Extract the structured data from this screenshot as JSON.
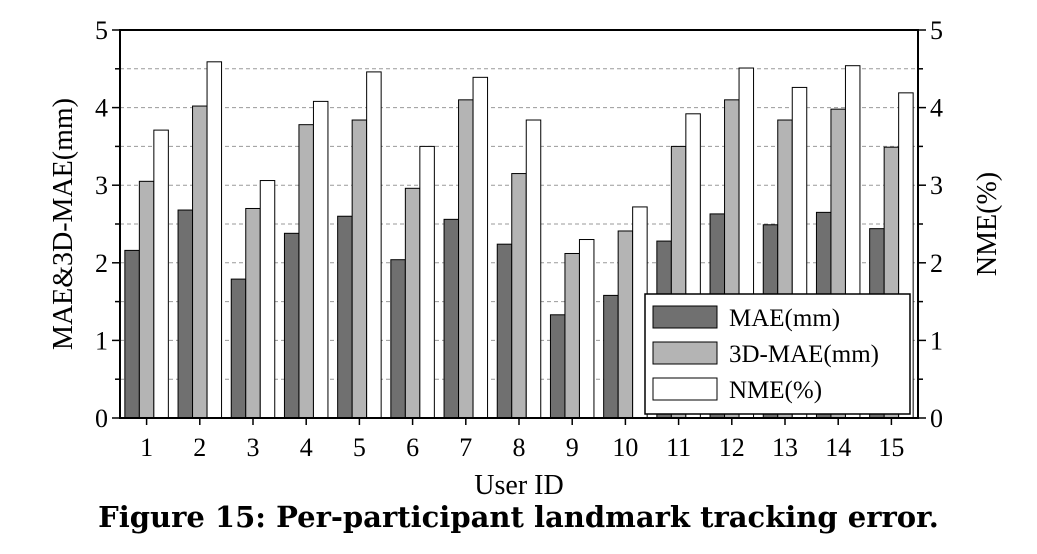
{
  "caption": "Figure 15: Per-participant landmark tracking error.",
  "chart_data": {
    "type": "bar",
    "xlabel": "User ID",
    "ylabel": "MAE&3D-MAE(mm)",
    "y2label": "NME(%)",
    "ylim": [
      0,
      5
    ],
    "y2lim": [
      0,
      5
    ],
    "yticks": [
      0,
      1,
      2,
      3,
      4,
      5
    ],
    "grid": "horizontal dashed",
    "legend_position": "bottom-right",
    "categories": [
      "1",
      "2",
      "3",
      "4",
      "5",
      "6",
      "7",
      "8",
      "9",
      "10",
      "11",
      "12",
      "13",
      "14",
      "15"
    ],
    "series": [
      {
        "name": "MAE(mm)",
        "color": "#707070",
        "values": [
          2.16,
          2.68,
          1.79,
          2.38,
          2.6,
          2.04,
          2.56,
          2.24,
          1.33,
          1.58,
          2.28,
          2.63,
          2.49,
          2.65,
          2.44
        ]
      },
      {
        "name": "3D-MAE(mm)",
        "color": "#b4b4b4",
        "values": [
          3.05,
          4.02,
          2.7,
          3.78,
          3.84,
          2.96,
          4.1,
          3.15,
          2.12,
          2.41,
          3.5,
          4.1,
          3.84,
          3.98,
          3.49
        ]
      },
      {
        "name": "NME(%)",
        "color": "#ffffff",
        "values": [
          3.71,
          4.59,
          3.06,
          4.08,
          4.46,
          3.5,
          4.39,
          3.84,
          2.3,
          2.72,
          3.92,
          4.51,
          4.26,
          4.54,
          4.19
        ]
      }
    ]
  }
}
